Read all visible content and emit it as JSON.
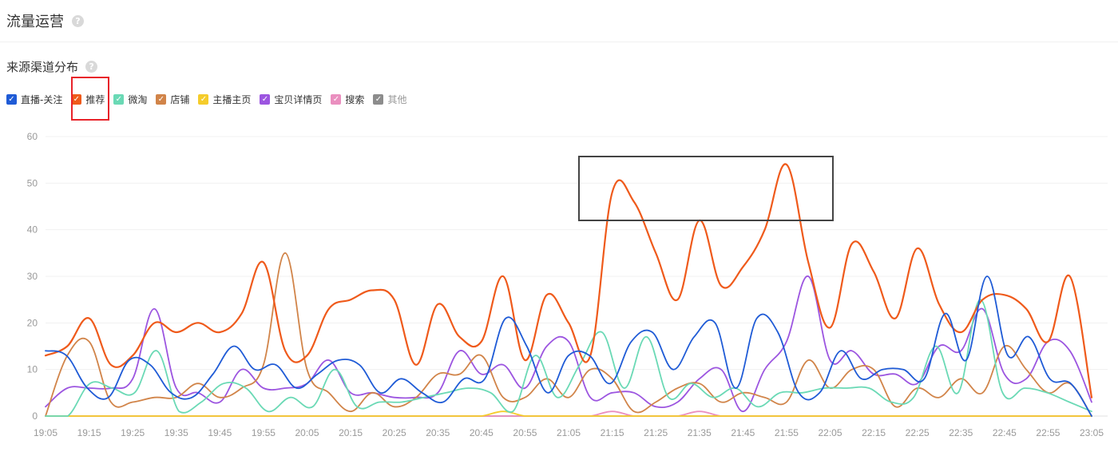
{
  "header": {
    "title": "流量运营"
  },
  "section": {
    "title": "来源渠道分布"
  },
  "help_icon_glyph": "?",
  "check_glyph": "✓",
  "chart_data": {
    "type": "line",
    "xlabel": "",
    "ylabel": "",
    "ylim": [
      0,
      60
    ],
    "yticks": [
      0,
      10,
      20,
      30,
      40,
      50,
      60
    ],
    "grid": true,
    "legend_position": "top-left",
    "x_tick_labels": [
      "19:05",
      "19:15",
      "19:25",
      "19:35",
      "19:45",
      "19:55",
      "20:05",
      "20:15",
      "20:25",
      "20:35",
      "20:45",
      "20:55",
      "21:05",
      "21:15",
      "21:25",
      "21:35",
      "21:45",
      "21:55",
      "22:05",
      "22:15",
      "22:25",
      "22:35",
      "22:45",
      "22:55",
      "23:05"
    ],
    "series": [
      {
        "name": "直播-关注",
        "color": "#1f5bd6",
        "values": [
          14,
          13,
          6,
          4,
          12,
          11,
          5,
          4,
          9,
          15,
          10,
          11,
          6,
          9,
          12,
          11,
          5,
          8,
          5,
          3,
          8,
          8,
          21,
          15,
          5,
          13,
          13,
          7,
          16,
          18,
          10,
          17,
          20,
          6,
          21,
          18,
          5,
          5,
          14,
          8,
          10,
          10,
          8,
          22,
          12,
          30,
          13,
          17,
          8,
          7,
          0
        ]
      },
      {
        "name": "推荐",
        "color": "#ef5a1b",
        "values": [
          13,
          15,
          21,
          11,
          13,
          20,
          18,
          20,
          18,
          22,
          33,
          14,
          13,
          23,
          25,
          27,
          25,
          11,
          24,
          17,
          16,
          30,
          12,
          26,
          20,
          13,
          48,
          46,
          35,
          25,
          42,
          28,
          32,
          40,
          54,
          33,
          19,
          37,
          31,
          21,
          36,
          24,
          18,
          25,
          26,
          23,
          16,
          30,
          4
        ]
      },
      {
        "name": "微淘",
        "color": "#6ad9b5",
        "values": [
          0,
          0,
          7,
          6,
          5,
          14,
          1,
          3,
          7,
          6,
          1,
          4,
          2,
          10,
          2,
          3,
          3,
          4,
          5,
          6,
          5,
          1,
          13,
          4,
          11,
          18,
          6,
          17,
          4,
          7,
          4,
          6,
          2,
          5,
          5,
          6,
          6,
          6,
          3,
          4,
          15,
          5,
          25,
          5,
          6,
          5,
          3,
          1
        ]
      },
      {
        "name": "店铺",
        "color": "#d18449",
        "values": [
          0,
          13,
          16,
          3,
          3,
          4,
          4,
          7,
          4,
          6,
          11,
          35,
          10,
          5,
          1,
          5,
          2,
          4,
          9,
          9,
          13,
          4,
          4,
          8,
          4,
          10,
          8,
          1,
          3,
          6,
          7,
          3,
          5,
          4,
          3,
          12,
          6,
          10,
          10,
          2,
          6,
          4,
          8,
          5,
          15,
          10,
          5,
          7,
          0
        ]
      },
      {
        "name": "主播主页",
        "color": "#f5cc2b",
        "values": [
          0,
          0,
          0,
          0,
          0,
          0,
          0,
          0,
          0,
          0,
          0,
          0,
          0,
          0,
          0,
          0,
          0,
          0,
          0,
          0,
          0,
          1,
          0,
          0,
          0,
          0,
          0,
          0,
          0,
          0,
          0,
          0,
          0,
          0,
          0,
          0,
          0,
          0,
          0,
          0,
          0,
          0,
          0,
          0,
          0,
          0,
          0,
          0,
          0
        ]
      },
      {
        "name": "宝贝详情页",
        "color": "#9c55e0",
        "values": [
          2,
          6,
          6,
          6,
          8,
          23,
          6,
          5,
          3,
          10,
          6,
          6,
          7,
          12,
          5,
          5,
          4,
          4,
          5,
          14,
          9,
          11,
          6,
          15,
          16,
          4,
          5,
          5,
          2,
          3,
          8,
          10,
          1,
          10,
          16,
          30,
          12,
          14,
          9,
          9,
          7,
          15,
          14,
          23,
          9,
          8,
          16,
          14,
          3
        ]
      },
      {
        "name": "搜索",
        "color": "#ea8fbf",
        "values": [
          0,
          0,
          0,
          0,
          0,
          0,
          0,
          0,
          0,
          0,
          0,
          0,
          0,
          0,
          0,
          0,
          0,
          0,
          0,
          0,
          0,
          0,
          0,
          0,
          0,
          0,
          1,
          0,
          0,
          0,
          1,
          0,
          0,
          0,
          0,
          0,
          0,
          0,
          0,
          0,
          0,
          0,
          0,
          0,
          0,
          0,
          0,
          0,
          0
        ]
      },
      {
        "name": "其他",
        "color": "#8c8c8c",
        "muted": true,
        "values": [
          0,
          0,
          0,
          0,
          0,
          0,
          0,
          0,
          0,
          0,
          0,
          0,
          0,
          0,
          0,
          0,
          0,
          0,
          0,
          0,
          0,
          0,
          0,
          0,
          0,
          0,
          0,
          0,
          0,
          0,
          0,
          0,
          0,
          0,
          0,
          0,
          0,
          0,
          0,
          0,
          0,
          0,
          0,
          0,
          0,
          0,
          0,
          0,
          0
        ]
      }
    ]
  }
}
